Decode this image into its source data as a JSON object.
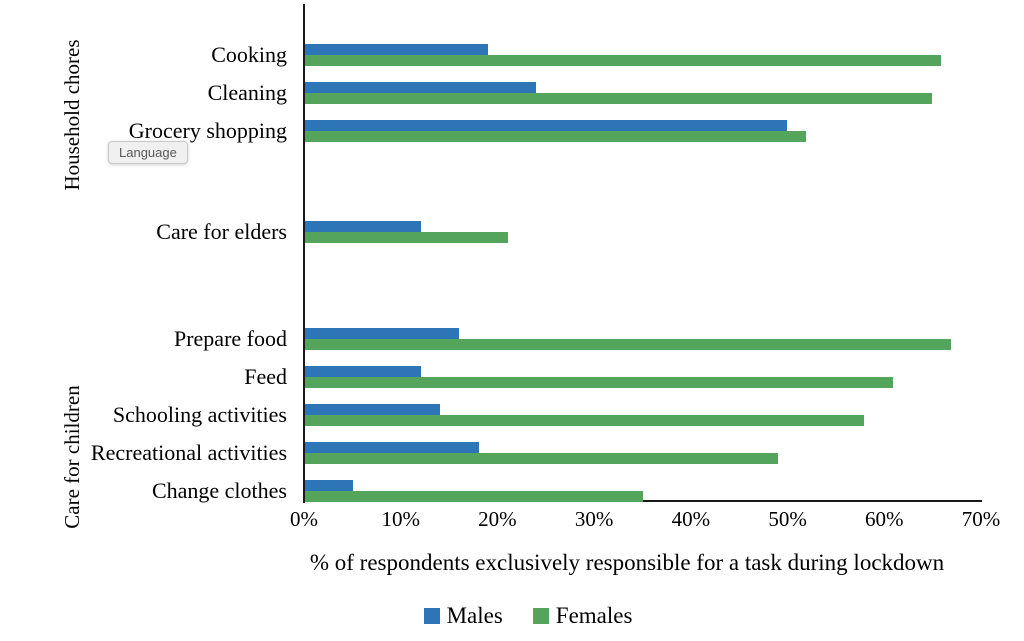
{
  "tooltip": {
    "label": "Language"
  },
  "chart_data": {
    "type": "bar",
    "orientation": "horizontal",
    "xlabel": "% of respondents exclusively responsible for a task during lockdown",
    "x_ticks": [
      "0%",
      "10%",
      "20%",
      "30%",
      "40%",
      "50%",
      "60%",
      "70%"
    ],
    "xlim": [
      0,
      70
    ],
    "grid": false,
    "series_names": [
      "Males",
      "Females"
    ],
    "colors": {
      "males": "#2E75B8",
      "females": "#55A45C",
      "axis": "#1a1a1a"
    },
    "legend": {
      "position": "bottom",
      "entries": [
        {
          "name": "Males",
          "color": "#2E75B8"
        },
        {
          "name": "Females",
          "color": "#55A45C"
        }
      ]
    },
    "groups": [
      {
        "label": "Household chores",
        "items": [
          {
            "category": "Cooking",
            "Males": 19,
            "Females": 66
          },
          {
            "category": "Cleaning",
            "Males": 24,
            "Females": 65
          },
          {
            "category": "Grocery shopping",
            "Males": 50,
            "Females": 52
          }
        ]
      },
      {
        "label": "",
        "items": [
          {
            "category": "Care for elders",
            "Males": 12,
            "Females": 21
          }
        ]
      },
      {
        "label": "Care for children",
        "items": [
          {
            "category": "Prepare food",
            "Males": 16,
            "Females": 67
          },
          {
            "category": "Feed",
            "Males": 12,
            "Females": 61
          },
          {
            "category": "Schooling activities",
            "Males": 14,
            "Females": 58
          },
          {
            "category": "Recreational activities",
            "Males": 18,
            "Females": 49
          },
          {
            "category": "Change clothes",
            "Males": 5,
            "Females": 35
          }
        ]
      }
    ]
  }
}
